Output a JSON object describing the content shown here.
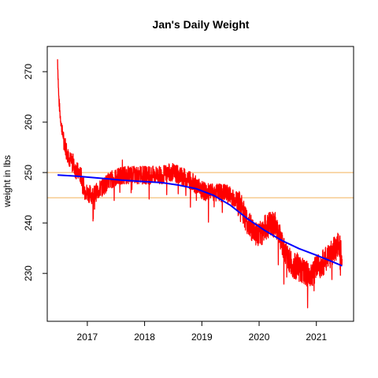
{
  "chart_data": {
    "type": "line",
    "title": "Jan's Daily Weight",
    "xlabel": "",
    "ylabel": "weight in lbs",
    "xlim": [
      2016.3,
      2021.65
    ],
    "ylim": [
      220.5,
      275
    ],
    "x_ticks": [
      2017,
      2018,
      2019,
      2020,
      2021
    ],
    "x_tick_labels": [
      "2017",
      "2018",
      "2019",
      "2020",
      "2021"
    ],
    "y_ticks": [
      230,
      240,
      250,
      260,
      270
    ],
    "y_tick_labels": [
      "230",
      "240",
      "250",
      "260",
      "270"
    ],
    "grid": false,
    "reference_lines": [
      {
        "y": 250,
        "color": "#f5c07a"
      },
      {
        "y": 245,
        "color": "#f5c07a"
      }
    ],
    "series": [
      {
        "color": "#ff0000",
        "style": "noisy daily line",
        "x": [
          2016.48,
          2016.5,
          2016.52,
          2016.55,
          2016.6,
          2016.65,
          2016.7,
          2016.75,
          2016.8,
          2016.85,
          2016.9,
          2016.95,
          2017.0,
          2017.1,
          2017.2,
          2017.3,
          2017.4,
          2017.5,
          2017.6,
          2017.7,
          2017.8,
          2017.9,
          2018.0,
          2018.1,
          2018.2,
          2018.3,
          2018.4,
          2018.5,
          2018.6,
          2018.7,
          2018.8,
          2018.9,
          2019.0,
          2019.1,
          2019.2,
          2019.3,
          2019.4,
          2019.5,
          2019.6,
          2019.7,
          2019.8,
          2019.9,
          2020.0,
          2020.1,
          2020.2,
          2020.3,
          2020.4,
          2020.5,
          2020.6,
          2020.7,
          2020.8,
          2020.9,
          2021.0,
          2021.1,
          2021.2,
          2021.3,
          2021.4,
          2021.45
        ],
        "y": [
          272.5,
          265,
          262,
          259,
          256,
          254,
          252.5,
          251.5,
          250.5,
          250,
          249,
          246.5,
          246,
          245.5,
          246.5,
          247.5,
          248.5,
          249,
          249.5,
          249.5,
          249.5,
          249.5,
          249.5,
          249.5,
          249.5,
          249.5,
          250,
          250,
          249.5,
          249,
          248.5,
          247.5,
          246.5,
          246,
          246,
          246,
          246,
          245.5,
          244.5,
          243,
          240,
          238.5,
          237.5,
          239,
          240,
          239.5,
          236,
          233,
          231.5,
          231,
          230,
          229.5,
          231,
          232,
          233,
          234.5,
          236,
          234
        ]
      },
      {
        "color": "#0000ff",
        "style": "smooth trend line",
        "x": [
          2016.48,
          2016.8,
          2017.2,
          2017.6,
          2018.0,
          2018.3,
          2018.6,
          2018.9,
          2019.2,
          2019.5,
          2019.8,
          2020.1,
          2020.4,
          2020.7,
          2021.0,
          2021.2,
          2021.45
        ],
        "y": [
          249.5,
          249.3,
          248.9,
          248.5,
          248.2,
          248.0,
          247.5,
          246.8,
          245.5,
          243.5,
          240.8,
          238.5,
          236.5,
          234.9,
          233.6,
          232.7,
          231.5
        ]
      }
    ]
  }
}
